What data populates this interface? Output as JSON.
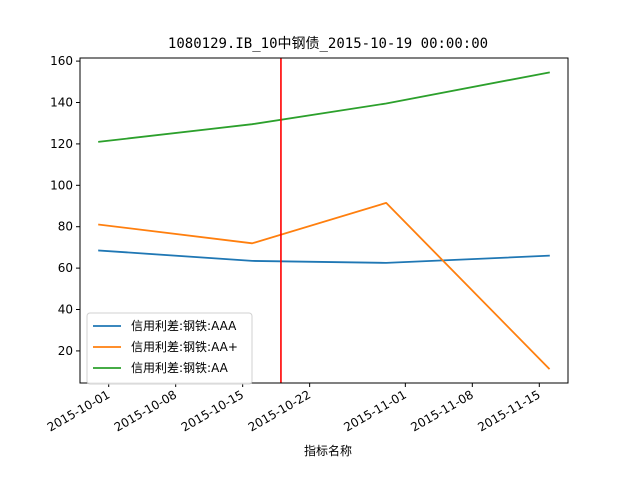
{
  "chart_data": {
    "type": "line",
    "title": "1080129.IB_10中钢债_2015-10-19 00:00:00",
    "xlabel": "指标名称",
    "ylabel": "",
    "x": [
      "2015-09-30",
      "2015-10-16",
      "2015-10-30",
      "2015-11-16"
    ],
    "xlim": [
      "2015-09-28",
      "2015-11-18"
    ],
    "ylim": [
      4.5,
      161.5
    ],
    "x_ticks": [
      "2015-10-01",
      "2015-10-08",
      "2015-10-15",
      "2015-10-22",
      "2015-11-01",
      "2015-11-08",
      "2015-11-15"
    ],
    "y_ticks": [
      20,
      40,
      60,
      80,
      100,
      120,
      140,
      160
    ],
    "series": [
      {
        "name": "信用利差:钢铁:AAA",
        "color": "#1f77b4",
        "values": [
          68.5,
          63.5,
          62.5,
          66.0
        ]
      },
      {
        "name": "信用利差:钢铁:AA+",
        "color": "#ff7f0e",
        "values": [
          81.0,
          72.0,
          91.5,
          11.5
        ]
      },
      {
        "name": "信用利差:钢铁:AA",
        "color": "#2ca02c",
        "values": [
          121.0,
          129.5,
          139.5,
          154.5
        ]
      }
    ],
    "vline": {
      "x": "2015-10-19",
      "color": "#ff0000"
    },
    "grid": false,
    "legend_position": "lower-left"
  }
}
